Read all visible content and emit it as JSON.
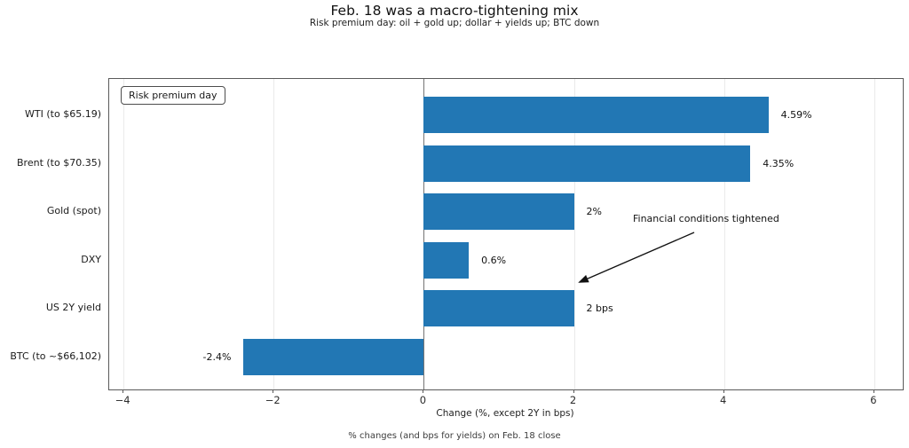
{
  "title": "Feb. 18 was a macro-tightening mix",
  "subtitle": "Risk premium day: oil + gold up; dollar + yields up; BTC down",
  "legend": {
    "label": "Risk premium day"
  },
  "annotation": {
    "text": "Financial conditions tightened"
  },
  "xlabel": "Change (%, except 2Y in bps)",
  "footer": "% changes (and bps for yields) on Feb. 18 close",
  "colors": {
    "bar": "#2277b4",
    "spine": "#5a5a5a",
    "grid": "#eaeaea",
    "zero_line": "#757575",
    "text": "#111111"
  },
  "chart_data": {
    "type": "bar",
    "orientation": "horizontal",
    "title": "Feb. 18 was a macro-tightening mix",
    "subtitle": "Risk premium day: oil + gold up; dollar + yields up; BTC down",
    "categories": [
      "WTI (to $65.19)",
      "Brent (to $70.35)",
      "Gold (spot)",
      "DXY",
      "US 2Y yield",
      "BTC (to ~$66,102)"
    ],
    "values": [
      4.59,
      4.35,
      2,
      0.6,
      2,
      -2.4
    ],
    "value_labels": [
      "4.59%",
      "4.35%",
      "2%",
      "0.6%",
      "2 bps",
      "-2.4%"
    ],
    "xlabel": "Change (%, except 2Y in bps)",
    "ylabel": "",
    "xticks": [
      -4,
      -2,
      0,
      2,
      4,
      6
    ],
    "xtick_labels": [
      "−4",
      "−2",
      "0",
      "2",
      "4",
      "6"
    ],
    "xlim": [
      -4.19,
      6.38
    ],
    "grid": "vertical-only",
    "legend_position": "upper-left",
    "annotation": "Financial conditions tightened",
    "caption": "% changes (and bps for yields) on Feb. 18 close"
  }
}
